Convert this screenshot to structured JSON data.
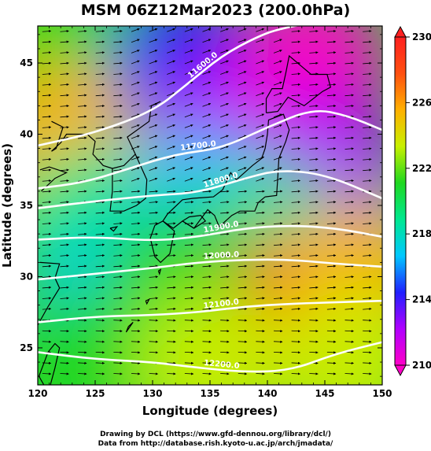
{
  "chart_data": {
    "type": "heatmap",
    "title": "MSM 06Z12Mar2023 (200.0hPa)",
    "xlabel": "Longitude (degrees)",
    "ylabel": "Latitude  (degrees)",
    "xlim": [
      120,
      150
    ],
    "ylim": [
      22.4,
      47.6
    ],
    "x_ticks": [
      120,
      125,
      130,
      135,
      140,
      145,
      150
    ],
    "y_ticks": [
      25,
      30,
      35,
      40,
      45
    ],
    "colorbar": {
      "range": [
        210,
        230
      ],
      "ticks": [
        210,
        214,
        218,
        222,
        226,
        230
      ],
      "colors": [
        "#ff00c8",
        "#b000ff",
        "#2020ff",
        "#00c8ff",
        "#00e890",
        "#20d820",
        "#c8f000",
        "#ffb000",
        "#ff5010",
        "#ff2020"
      ]
    },
    "field": [
      {
        "lon": 121,
        "lat": 46,
        "value": 221
      },
      {
        "lon": 122,
        "lat": 40,
        "value": 225
      },
      {
        "lon": 125,
        "lat": 34,
        "value": 219
      },
      {
        "lon": 126,
        "lat": 28,
        "value": 217
      },
      {
        "lon": 124,
        "lat": 24,
        "value": 222
      },
      {
        "lon": 133,
        "lat": 45,
        "value": 214
      },
      {
        "lon": 136,
        "lat": 40,
        "value": 213
      },
      {
        "lon": 144,
        "lat": 45,
        "value": 210
      },
      {
        "lon": 145,
        "lat": 38,
        "value": 213
      },
      {
        "lon": 134,
        "lat": 35,
        "value": 216
      },
      {
        "lon": 140,
        "lat": 33,
        "value": 219
      },
      {
        "lon": 138,
        "lat": 28,
        "value": 228
      },
      {
        "lon": 143,
        "lat": 27,
        "value": 227
      },
      {
        "lon": 148,
        "lat": 30,
        "value": 226
      },
      {
        "lon": 132,
        "lat": 30,
        "value": 220
      },
      {
        "lon": 135,
        "lat": 24,
        "value": 223
      },
      {
        "lon": 147,
        "lat": 24,
        "value": 224
      }
    ],
    "contours": [
      {
        "label": "11600.0",
        "points": [
          [
            120,
            39.2
          ],
          [
            125,
            40.1
          ],
          [
            130,
            41.6
          ],
          [
            133,
            43.5
          ],
          [
            136,
            45.5
          ],
          [
            139,
            46.8
          ],
          [
            141,
            47.4
          ],
          [
            145,
            48.0
          ]
        ]
      },
      {
        "label": "11700.0",
        "points": [
          [
            120,
            36.2
          ],
          [
            124,
            36.6
          ],
          [
            128,
            37.6
          ],
          [
            132,
            38.6
          ],
          [
            136,
            39.0
          ],
          [
            140,
            40.5
          ],
          [
            144,
            41.8
          ],
          [
            147,
            41.3
          ],
          [
            150,
            40.3
          ]
        ]
      },
      {
        "label": "11800.0",
        "points": [
          [
            120,
            34.8
          ],
          [
            125,
            35.3
          ],
          [
            130,
            35.7
          ],
          [
            134,
            35.9
          ],
          [
            138,
            36.9
          ],
          [
            141,
            37.5
          ],
          [
            145,
            37.2
          ],
          [
            150,
            35.5
          ]
        ]
      },
      {
        "label": "11900.0",
        "points": [
          [
            120,
            32.6
          ],
          [
            125,
            32.8
          ],
          [
            130,
            32.5
          ],
          [
            134,
            32.8
          ],
          [
            138,
            33.4
          ],
          [
            142,
            33.6
          ],
          [
            146,
            33.4
          ],
          [
            150,
            32.8
          ]
        ]
      },
      {
        "label": "12000.0",
        "points": [
          [
            120,
            29.8
          ],
          [
            125,
            30.2
          ],
          [
            130,
            30.6
          ],
          [
            134,
            31.0
          ],
          [
            138,
            31.2
          ],
          [
            142,
            31.2
          ],
          [
            146,
            30.9
          ],
          [
            150,
            30.7
          ]
        ]
      },
      {
        "label": "12100.0",
        "points": [
          [
            120,
            26.8
          ],
          [
            125,
            27.2
          ],
          [
            130,
            27.3
          ],
          [
            134,
            27.5
          ],
          [
            138,
            27.9
          ],
          [
            142,
            28.1
          ],
          [
            146,
            28.2
          ],
          [
            150,
            28.3
          ]
        ]
      },
      {
        "label": "12200.0",
        "points": [
          [
            120,
            24.7
          ],
          [
            125,
            24.2
          ],
          [
            130,
            24.0
          ],
          [
            134,
            23.6
          ],
          [
            138,
            23.3
          ],
          [
            142,
            23.4
          ],
          [
            146,
            24.6
          ],
          [
            150,
            25.4
          ]
        ]
      }
    ],
    "wind_direction": "predominantly westerly (eastward arrows)"
  },
  "credits": {
    "line1": "Drawing by DCL (https://www.gfd-dennou.org/library/dcl/)",
    "line2": "Data from http://database.rish.kyoto-u.ac.jp/arch/jmadata/"
  }
}
